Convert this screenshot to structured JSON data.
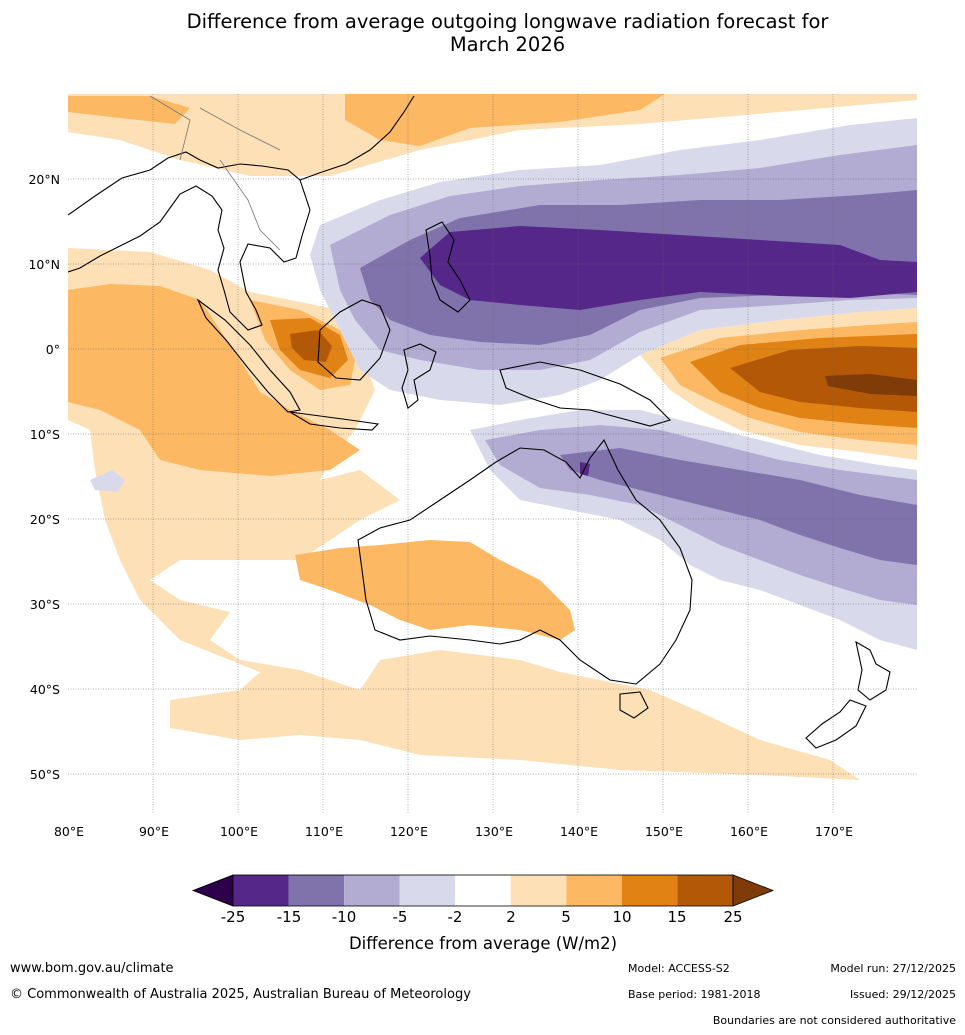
{
  "title_line1": "Difference from average outgoing longwave radiation forecast for",
  "title_line2": "March 2026",
  "map": {
    "lat_labels": [
      "20°N",
      "10°N",
      "0°",
      "10°S",
      "20°S",
      "30°S",
      "40°S",
      "50°S"
    ],
    "lon_labels": [
      "80°E",
      "90°E",
      "100°E",
      "110°E",
      "120°E",
      "130°E",
      "140°E",
      "150°E",
      "160°E",
      "170°E"
    ],
    "lon_range_deg": [
      80,
      180
    ],
    "lat_range_deg": [
      -55,
      30
    ]
  },
  "colorbar": {
    "title": "Difference from average (W/m2)",
    "tick_labels": [
      "-25",
      "-15",
      "-10",
      "-5",
      "-2",
      "2",
      "5",
      "10",
      "15",
      "25"
    ],
    "colors": {
      "lt_neg25": "#2d004b",
      "neg25_neg15": "#542788",
      "neg15_neg10": "#8073ac",
      "neg10_neg5": "#b2abd2",
      "neg5_neg2": "#d8daeb",
      "neg2_2": "#ffffff",
      "p2_5": "#fee0b6",
      "p5_10": "#fdb863",
      "p10_15": "#e08214",
      "p15_25": "#b35806",
      "gt25": "#7f3b08"
    }
  },
  "footer": {
    "website": "www.bom.gov.au/climate",
    "copyright": "© Commonwealth of Australia 2025, Australian Bureau of Meteorology",
    "model": "Model: ACCESS-S2",
    "base_period": "Base period: 1981-2018",
    "model_run": "Model run: 27/12/2025",
    "issued": "Issued: 29/12/2025",
    "disclaimer": "Boundaries are not considered authoritative"
  }
}
